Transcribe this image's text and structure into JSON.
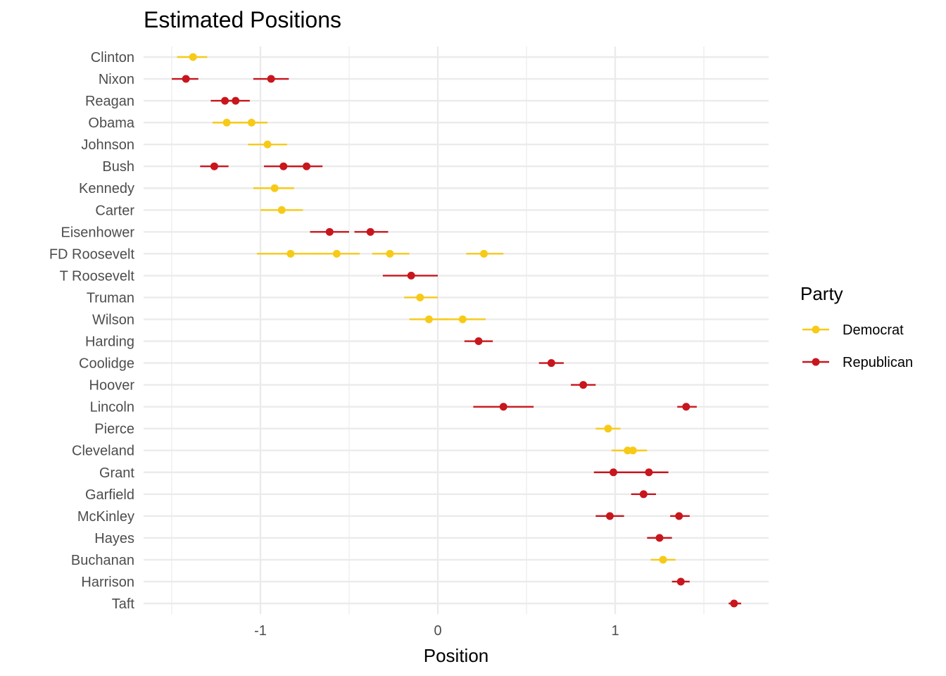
{
  "chart_data": {
    "type": "scatter",
    "title": "Estimated Positions",
    "xlabel": "Position",
    "ylabel": "",
    "xlim": [
      -1.6,
      1.86
    ],
    "xticks": [
      -1,
      0,
      1
    ],
    "xtick_labels": [
      "-1",
      "0",
      "1"
    ],
    "grid": true,
    "legend": {
      "title": "Party",
      "position": "right"
    },
    "series": [
      {
        "name": "Democrat",
        "color": "#F7CA18"
      },
      {
        "name": "Republican",
        "color": "#C8161D"
      }
    ],
    "categories": [
      "Clinton",
      "Nixon",
      "Reagan",
      "Obama",
      "Johnson",
      "Bush",
      "Kennedy",
      "Carter",
      "Eisenhower",
      "FD Roosevelt",
      "T Roosevelt",
      "Truman",
      "Wilson",
      "Harding",
      "Coolidge",
      "Hoover",
      "Lincoln",
      "Pierce",
      "Cleveland",
      "Grant",
      "Garfield",
      "McKinley",
      "Hayes",
      "Buchanan",
      "Harrison",
      "Taft"
    ],
    "points": [
      {
        "name": "Clinton",
        "party": "Democrat",
        "x": -1.38,
        "lo": -1.47,
        "hi": -1.3
      },
      {
        "name": "Nixon",
        "party": "Republican",
        "x": -1.42,
        "lo": -1.5,
        "hi": -1.35
      },
      {
        "name": "Nixon",
        "party": "Republican",
        "x": -0.94,
        "lo": -1.04,
        "hi": -0.84
      },
      {
        "name": "Reagan",
        "party": "Republican",
        "x": -1.2,
        "lo": -1.28,
        "hi": -1.13
      },
      {
        "name": "Reagan",
        "party": "Republican",
        "x": -1.14,
        "lo": -1.21,
        "hi": -1.06
      },
      {
        "name": "Obama",
        "party": "Democrat",
        "x": -1.19,
        "lo": -1.27,
        "hi": -1.1
      },
      {
        "name": "Obama",
        "party": "Democrat",
        "x": -1.05,
        "lo": -1.14,
        "hi": -0.96
      },
      {
        "name": "Johnson",
        "party": "Democrat",
        "x": -0.96,
        "lo": -1.07,
        "hi": -0.85
      },
      {
        "name": "Bush",
        "party": "Republican",
        "x": -1.26,
        "lo": -1.34,
        "hi": -1.18
      },
      {
        "name": "Bush",
        "party": "Republican",
        "x": -0.87,
        "lo": -0.98,
        "hi": -0.77
      },
      {
        "name": "Bush",
        "party": "Republican",
        "x": -0.74,
        "lo": -0.83,
        "hi": -0.65
      },
      {
        "name": "Kennedy",
        "party": "Democrat",
        "x": -0.92,
        "lo": -1.04,
        "hi": -0.81
      },
      {
        "name": "Carter",
        "party": "Democrat",
        "x": -0.88,
        "lo": -1.0,
        "hi": -0.76
      },
      {
        "name": "Eisenhower",
        "party": "Republican",
        "x": -0.61,
        "lo": -0.72,
        "hi": -0.5
      },
      {
        "name": "Eisenhower",
        "party": "Republican",
        "x": -0.38,
        "lo": -0.47,
        "hi": -0.28
      },
      {
        "name": "FD Roosevelt",
        "party": "Democrat",
        "x": -0.83,
        "lo": -1.02,
        "hi": -0.64
      },
      {
        "name": "FD Roosevelt",
        "party": "Democrat",
        "x": -0.57,
        "lo": -0.71,
        "hi": -0.44
      },
      {
        "name": "FD Roosevelt",
        "party": "Democrat",
        "x": -0.27,
        "lo": -0.37,
        "hi": -0.16
      },
      {
        "name": "FD Roosevelt",
        "party": "Democrat",
        "x": 0.26,
        "lo": 0.16,
        "hi": 0.37
      },
      {
        "name": "T Roosevelt",
        "party": "Republican",
        "x": -0.15,
        "lo": -0.31,
        "hi": 0.0
      },
      {
        "name": "Truman",
        "party": "Democrat",
        "x": -0.1,
        "lo": -0.19,
        "hi": 0.0
      },
      {
        "name": "Wilson",
        "party": "Democrat",
        "x": -0.05,
        "lo": -0.16,
        "hi": 0.06
      },
      {
        "name": "Wilson",
        "party": "Democrat",
        "x": 0.14,
        "lo": 0.02,
        "hi": 0.27
      },
      {
        "name": "Harding",
        "party": "Republican",
        "x": 0.23,
        "lo": 0.15,
        "hi": 0.31
      },
      {
        "name": "Coolidge",
        "party": "Republican",
        "x": 0.64,
        "lo": 0.57,
        "hi": 0.71
      },
      {
        "name": "Hoover",
        "party": "Republican",
        "x": 0.82,
        "lo": 0.75,
        "hi": 0.89
      },
      {
        "name": "Lincoln",
        "party": "Republican",
        "x": 0.37,
        "lo": 0.2,
        "hi": 0.54
      },
      {
        "name": "Lincoln",
        "party": "Republican",
        "x": 1.4,
        "lo": 1.35,
        "hi": 1.46
      },
      {
        "name": "Pierce",
        "party": "Democrat",
        "x": 0.96,
        "lo": 0.89,
        "hi": 1.03
      },
      {
        "name": "Cleveland",
        "party": "Democrat",
        "x": 1.07,
        "lo": 0.98,
        "hi": 1.16
      },
      {
        "name": "Cleveland",
        "party": "Democrat",
        "x": 1.1,
        "lo": 1.02,
        "hi": 1.18
      },
      {
        "name": "Grant",
        "party": "Republican",
        "x": 0.99,
        "lo": 0.88,
        "hi": 1.1
      },
      {
        "name": "Grant",
        "party": "Republican",
        "x": 1.19,
        "lo": 1.08,
        "hi": 1.3
      },
      {
        "name": "Garfield",
        "party": "Republican",
        "x": 1.16,
        "lo": 1.09,
        "hi": 1.23
      },
      {
        "name": "McKinley",
        "party": "Republican",
        "x": 0.97,
        "lo": 0.89,
        "hi": 1.05
      },
      {
        "name": "McKinley",
        "party": "Republican",
        "x": 1.36,
        "lo": 1.31,
        "hi": 1.42
      },
      {
        "name": "Hayes",
        "party": "Republican",
        "x": 1.25,
        "lo": 1.18,
        "hi": 1.32
      },
      {
        "name": "Buchanan",
        "party": "Democrat",
        "x": 1.27,
        "lo": 1.2,
        "hi": 1.34
      },
      {
        "name": "Harrison",
        "party": "Republican",
        "x": 1.37,
        "lo": 1.32,
        "hi": 1.42
      },
      {
        "name": "Taft",
        "party": "Republican",
        "x": 1.67,
        "lo": 1.64,
        "hi": 1.71
      }
    ]
  }
}
